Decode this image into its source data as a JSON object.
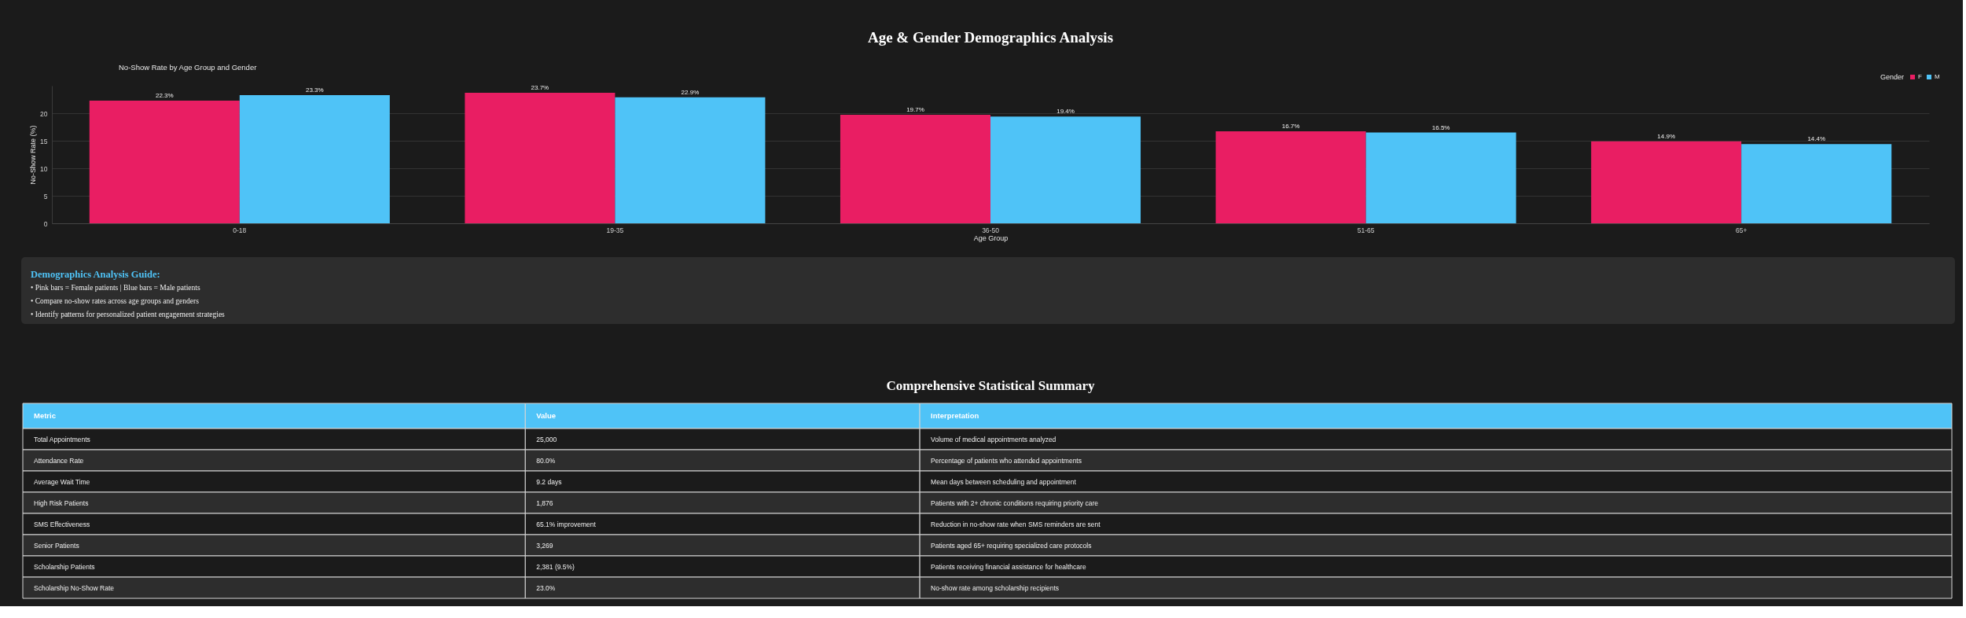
{
  "chart_data": [
    {
      "type": "bar",
      "title": "Age & Gender Demographics Analysis",
      "subtitle": "No-Show Rate by Age Group and Gender",
      "xlabel": "Age Group",
      "ylabel": "No-Show Rate (%)",
      "legend_title": "Gender",
      "categories": [
        "0-18",
        "19-35",
        "36-50",
        "51-65",
        "65+"
      ],
      "series": [
        {
          "name": "F",
          "color": "#e91e63",
          "values": [
            22.3,
            23.7,
            19.7,
            16.7,
            14.9
          ],
          "value_labels": [
            "22.3%",
            "23.7%",
            "19.7%",
            "16.7%",
            "14.9%"
          ]
        },
        {
          "name": "M",
          "color": "#4fc3f7",
          "values": [
            23.3,
            22.9,
            19.4,
            16.5,
            14.4
          ],
          "value_labels": [
            "23.3%",
            "22.9%",
            "19.4%",
            "16.5%",
            "14.4%"
          ]
        }
      ],
      "ylim": [
        0,
        25
      ],
      "yticks": [
        0,
        5,
        10,
        15,
        20
      ],
      "grid": "y",
      "legend": "top right",
      "annotations": [
        "Demographics Analysis Guide:",
        "• Pink bars = Female patients | Blue bars = Male patients",
        "• Compare no-show rates across age groups and genders",
        "• Identify patterns for personalized patient engagement strategies"
      ]
    },
    {
      "type": "other",
      "title": "Comprehensive Statistical Summary",
      "categories": [
        "Metric",
        "Value",
        "Interpretation"
      ],
      "annotations": [
        "Total Appointments",
        "25,000",
        "Volume of medical appointments analyzed",
        "Attendance Rate",
        "80.0%",
        "Percentage of patients who attended appointments",
        "Average Wait Time",
        "9.2 days",
        "Mean days between scheduling and appointment",
        "High Risk Patients",
        "1,876",
        "Patients with 2+ chronic conditions requiring priority care",
        "SMS Effectiveness",
        "65.1% improvement",
        "Reduction in no-show rate when SMS reminders are sent",
        "Senior Patients",
        "3,269",
        "Patients aged 65+ requiring specialized care protocols",
        "Scholarship Patients",
        "2,381 (9.5%)",
        "Patients receiving financial assistance for healthcare",
        "Scholarship No-Show Rate",
        "23.0%",
        "No-show rate among scholarship recipients"
      ]
    }
  ]
}
